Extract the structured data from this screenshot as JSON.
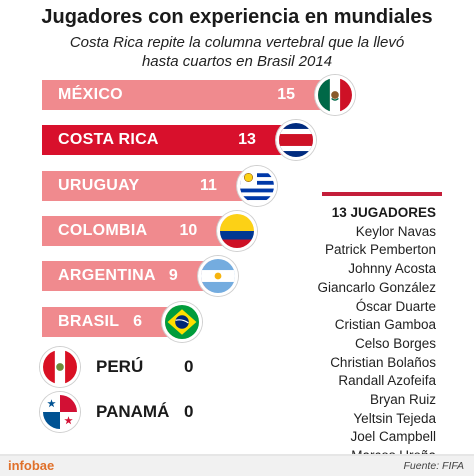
{
  "title": "Jugadores con experiencia en mundiales",
  "subtitle_lines": [
    "Costa Rica repite la columna vertebral que la llevó",
    "hasta  cuartos en Brasil 2014"
  ],
  "colors": {
    "bar": "#f08a8e",
    "highlight": "#d8102c",
    "accent": "#c41e3a",
    "brand": "#e0702a"
  },
  "chart_data": {
    "type": "bar",
    "orientation": "horizontal",
    "title": "Jugadores con experiencia en mundiales",
    "categories": [
      "MÉXICO",
      "COSTA RICA",
      "URUGUAY",
      "COLOMBIA",
      "ARGENTINA",
      "BRASIL",
      "PERÚ",
      "PANAMÁ"
    ],
    "values": [
      15,
      13,
      11,
      10,
      9,
      6,
      0,
      0
    ],
    "value_labels": [
      "15",
      "13",
      "11",
      "10",
      "9",
      "6",
      "0",
      "0"
    ],
    "highlight": "COSTA RICA",
    "flags": [
      "mexico-flag-icon",
      "costa-rica-flag-icon",
      "uruguay-flag-icon",
      "colombia-flag-icon",
      "argentina-flag-icon",
      "brazil-flag-icon",
      "peru-flag-icon",
      "panama-flag-icon"
    ],
    "grid": false,
    "legend": "none"
  },
  "players": {
    "heading": "13 JUGADORES",
    "names": [
      "Keylor Navas",
      "Patrick Pemberton",
      "Johnny Acosta",
      "Giancarlo González",
      "Óscar Duarte",
      "Cristian Gamboa",
      "Celso Borges",
      "Christian Bolaños",
      "Randall Azofeifa",
      "Bryan Ruiz",
      "Yeltsin Tejeda",
      "Joel Campbell",
      "Marcos Ureña"
    ]
  },
  "footer": {
    "brand": "infobae",
    "source": "Fuente: FIFA"
  }
}
